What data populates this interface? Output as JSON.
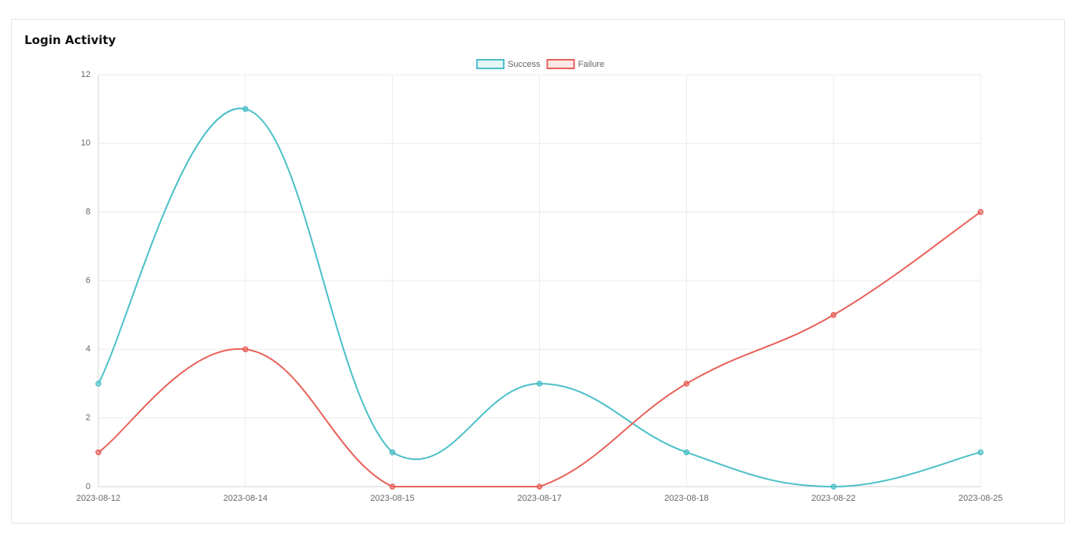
{
  "chart_data": {
    "type": "line",
    "title": "Login Activity",
    "categories": [
      "2023-08-12",
      "2023-08-14",
      "2023-08-15",
      "2023-08-17",
      "2023-08-18",
      "2023-08-22",
      "2023-08-25"
    ],
    "series": [
      {
        "name": "Success",
        "color": "#4bc0c8",
        "values": [
          3,
          11,
          1,
          3,
          1,
          0,
          1
        ]
      },
      {
        "name": "Failure",
        "color": "#e8625a",
        "values": [
          1,
          4,
          0,
          0,
          3,
          5,
          8
        ]
      }
    ],
    "ylim": [
      0,
      12
    ],
    "yticks": [
      0,
      2,
      4,
      6,
      8,
      10,
      12
    ],
    "grid": true,
    "legend": "top"
  }
}
